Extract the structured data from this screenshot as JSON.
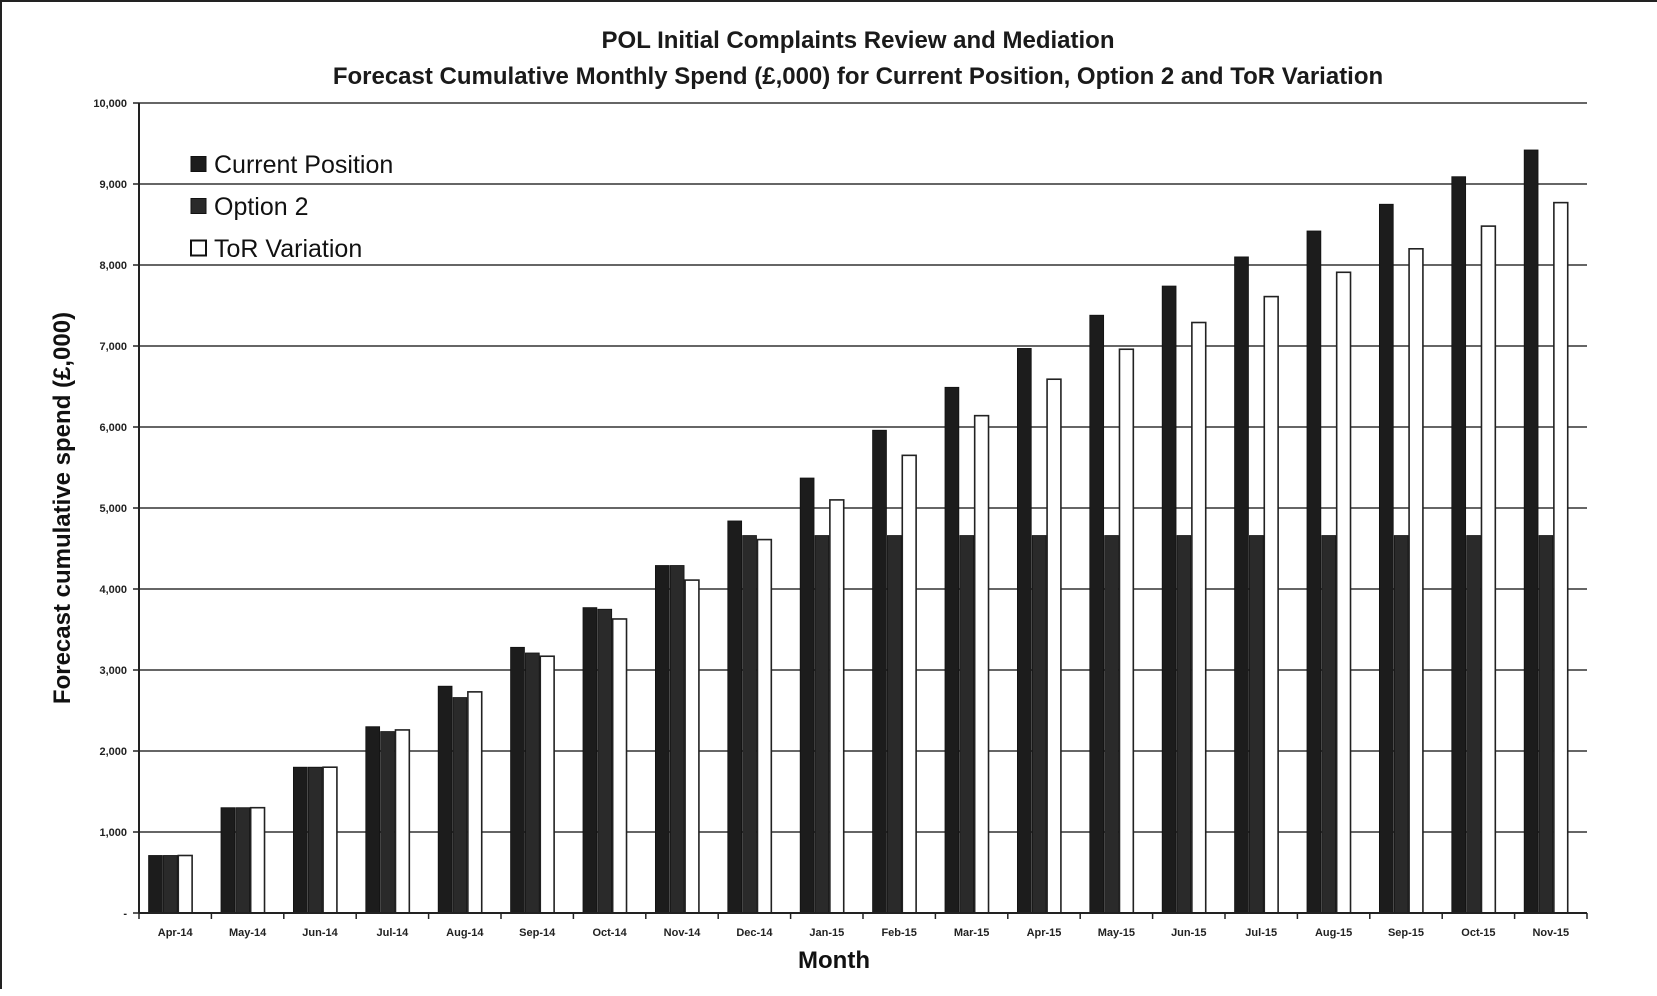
{
  "chart_data": {
    "type": "bar",
    "title": "POL Initial Complaints Review and Mediation",
    "subtitle": "Forecast Cumulative Monthly Spend (£,000) for Current Position, Option 2 and ToR Variation",
    "xlabel": "Month",
    "ylabel": "Forecast cumulative spend (£,000)",
    "ylim": [
      0,
      10000
    ],
    "yticks": [
      0,
      1000,
      2000,
      3000,
      4000,
      5000,
      6000,
      7000,
      8000,
      9000,
      10000
    ],
    "ytick_labels": [
      "-",
      "1,000",
      "2,000",
      "3,000",
      "4,000",
      "5,000",
      "6,000",
      "7,000",
      "8,000",
      "9,000",
      "10,000"
    ],
    "grid": true,
    "legend_position": "top-left",
    "categories": [
      "Apr-14",
      "May-14",
      "Jun-14",
      "Jul-14",
      "Aug-14",
      "Sep-14",
      "Oct-14",
      "Nov-14",
      "Dec-14",
      "Jan-15",
      "Feb-15",
      "Mar-15",
      "Apr-15",
      "May-15",
      "Jun-15",
      "Jul-15",
      "Aug-15",
      "Sep-15",
      "Oct-15",
      "Nov-15"
    ],
    "series": [
      {
        "name": "Current Position",
        "color": "#1c1c1c",
        "values": [
          710,
          1300,
          1800,
          2300,
          2800,
          3280,
          3770,
          4290,
          4840,
          5370,
          5960,
          6490,
          6970,
          7380,
          7740,
          8100,
          8420,
          8750,
          9090,
          9420
        ]
      },
      {
        "name": "Option 2",
        "color": "#2a2a2a",
        "values": [
          710,
          1300,
          1800,
          2240,
          2660,
          3210,
          3750,
          4290,
          4660,
          4660,
          4660,
          4660,
          4660,
          4660,
          4660,
          4660,
          4660,
          4660,
          4660,
          4660
        ]
      },
      {
        "name": "ToR Variation",
        "color": "#ffffff",
        "values": [
          710,
          1300,
          1800,
          2260,
          2730,
          3170,
          3630,
          4110,
          4610,
          5100,
          5650,
          6140,
          6590,
          6960,
          7290,
          7610,
          7910,
          8200,
          8480,
          8770
        ]
      }
    ]
  }
}
